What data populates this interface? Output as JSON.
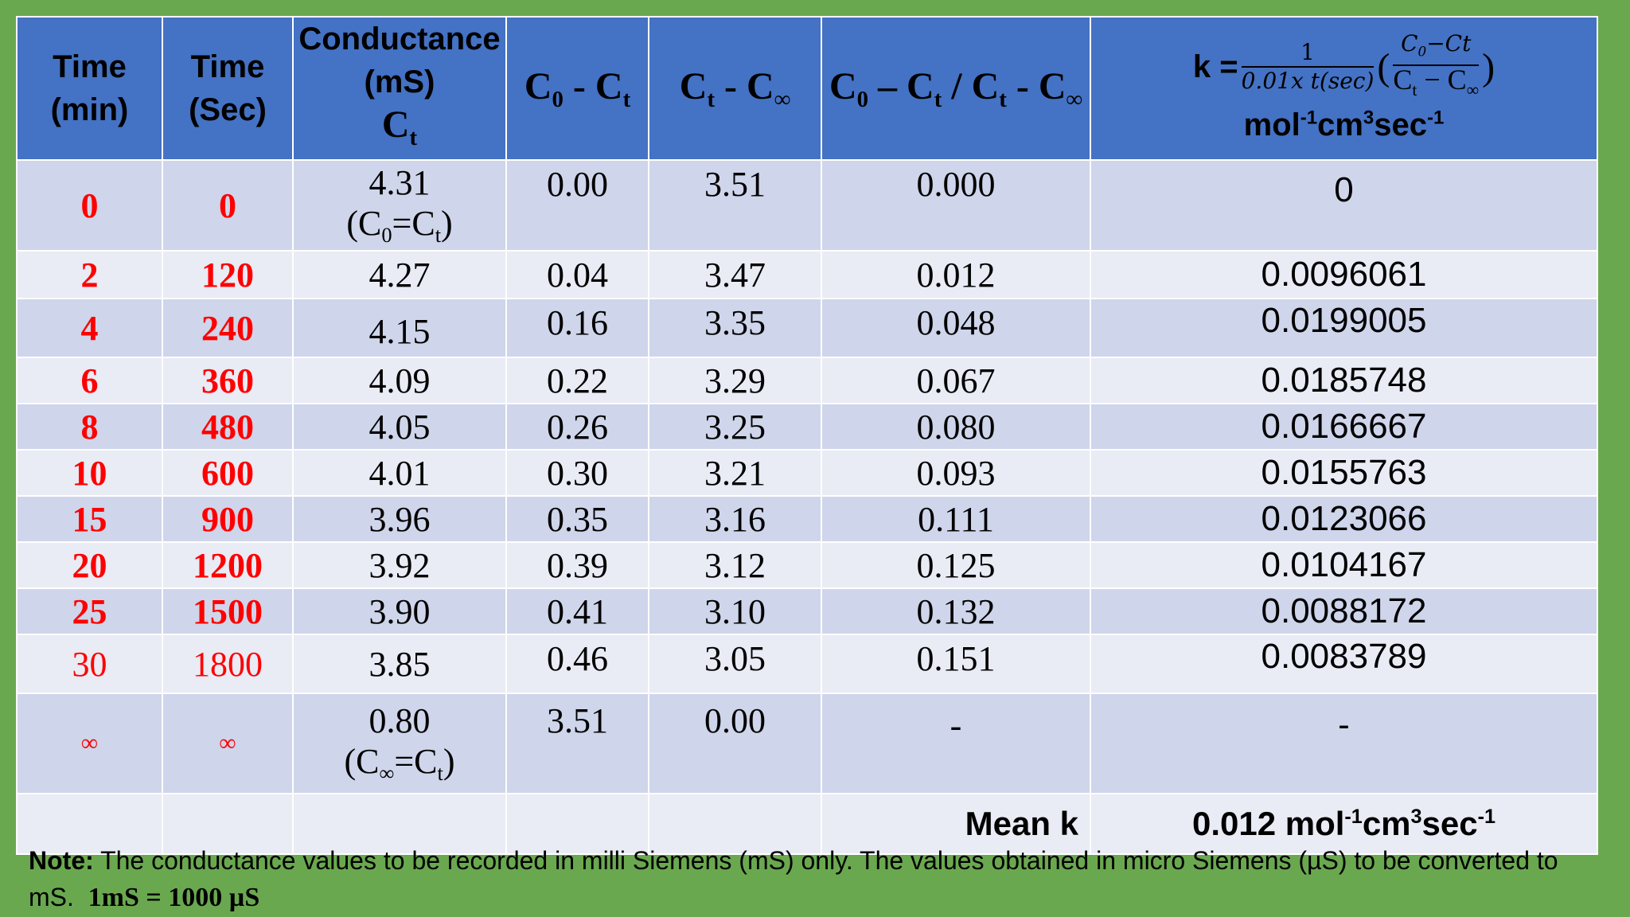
{
  "headers": {
    "time_min": [
      "Time",
      "(min)"
    ],
    "time_sec": [
      "Time",
      "(Sec)"
    ],
    "conductance": [
      "Conductance",
      "(mS)"
    ],
    "col4": "C0 - Ct",
    "col5": "Ct - C∞",
    "col6": "C0 − Ct / Ct - C∞",
    "k_formula": {
      "prefix": "k =",
      "frac1_num": "1",
      "frac1_den": "0.01x t(sec)",
      "frac2_num": "C0−Ct",
      "frac2_den": "Ct − C∞",
      "units": "mol-1cm3sec-1"
    }
  },
  "rows": [
    {
      "min": "0",
      "sec": "0",
      "cond": "4.31",
      "cond_note": "(C0=Ct)",
      "c0ct": "0.00",
      "ctcinf": "3.51",
      "ratio": "0.000",
      "k": "0"
    },
    {
      "min": "2",
      "sec": "120",
      "cond": "4.27",
      "c0ct": "0.04",
      "ctcinf": "3.47",
      "ratio": "0.012",
      "k": "0.0096061"
    },
    {
      "min": "4",
      "sec": "240",
      "cond": "4.15",
      "c0ct": "0.16",
      "ctcinf": "3.35",
      "ratio": "0.048",
      "k": "0.0199005"
    },
    {
      "min": "6",
      "sec": "360",
      "cond": "4.09",
      "c0ct": "0.22",
      "ctcinf": "3.29",
      "ratio": "0.067",
      "k": "0.0185748"
    },
    {
      "min": "8",
      "sec": "480",
      "cond": "4.05",
      "c0ct": "0.26",
      "ctcinf": "3.25",
      "ratio": "0.080",
      "k": "0.0166667"
    },
    {
      "min": "10",
      "sec": "600",
      "cond": "4.01",
      "c0ct": "0.30",
      "ctcinf": "3.21",
      "ratio": "0.093",
      "k": "0.0155763"
    },
    {
      "min": "15",
      "sec": "900",
      "cond": "3.96",
      "c0ct": "0.35",
      "ctcinf": "3.16",
      "ratio": "0.111",
      "k": "0.0123066"
    },
    {
      "min": "20",
      "sec": "1200",
      "cond": "3.92",
      "c0ct": "0.39",
      "ctcinf": "3.12",
      "ratio": "0.125",
      "k": "0.0104167"
    },
    {
      "min": "25",
      "sec": "1500",
      "cond": "3.90",
      "c0ct": "0.41",
      "ctcinf": "3.10",
      "ratio": "0.132",
      "k": "0.0088172"
    },
    {
      "min": "30",
      "sec": "1800",
      "cond": "3.85",
      "c0ct": "0.46",
      "ctcinf": "3.05",
      "ratio": "0.151",
      "k": "0.0083789"
    },
    {
      "min": "∞",
      "sec": "∞",
      "cond": "0.80",
      "cond_note": "(C∞=Ct)",
      "c0ct": "3.51",
      "ctcinf": "0.00",
      "ratio": "-",
      "k": "-"
    }
  ],
  "mean": {
    "label": "Mean k",
    "value": "0.012 mol-1cm3sec-1"
  },
  "note": {
    "label": "Note:",
    "text": "The conductance values to be recorded in milli Siemens (mS) only. The values obtained in micro Siemens (µS) to be converted to mS.",
    "equation": "1mS = 1000 µS"
  },
  "colors": {
    "background": "#6aa84f",
    "header": "#4472c4",
    "row_dark": "#cfd5ea",
    "row_light": "#e9ebf5",
    "time_text": "#ff0000"
  }
}
